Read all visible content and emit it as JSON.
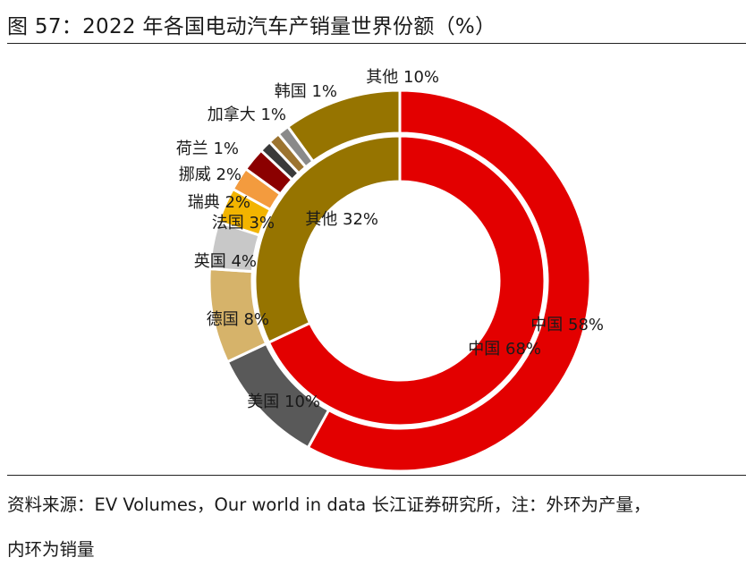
{
  "title": "图 57：2022 年各国电动汽车产销量世界份额（%）",
  "source": "资料来源：EV Volumes，Our world in data  长江证券研究所，注：外环为产量，",
  "note": "内环为销量",
  "chart_data": {
    "type": "donut",
    "rings": [
      {
        "name": "外环",
        "measure": "产量",
        "categories": [
          "中国",
          "美国",
          "德国",
          "英国",
          "法国",
          "瑞典",
          "挪威",
          "荷兰",
          "加拿大",
          "韩国",
          "其他"
        ],
        "values": [
          58,
          10,
          8,
          4,
          3,
          2,
          2,
          1,
          1,
          1,
          10
        ],
        "labels": [
          "中国 58%",
          "美国 10%",
          "德国 8%",
          "英国 4%",
          "法国 3%",
          "瑞典 2%",
          "挪威 2%",
          "荷兰 1%",
          "加拿大 1%",
          "韩国 1%",
          "其他 10%"
        ],
        "colors": [
          "#E30000",
          "#595959",
          "#D6B36A",
          "#C8C8C8",
          "#F2B400",
          "#F39B3E",
          "#8B0000",
          "#3A3A3A",
          "#9C7430",
          "#8A8A8A",
          "#967400"
        ]
      },
      {
        "name": "内环",
        "measure": "销量",
        "categories": [
          "中国",
          "其他"
        ],
        "values": [
          68,
          32
        ],
        "labels": [
          "中国 68%",
          "其他 32%"
        ],
        "colors": [
          "#E30000",
          "#967400"
        ]
      }
    ]
  }
}
